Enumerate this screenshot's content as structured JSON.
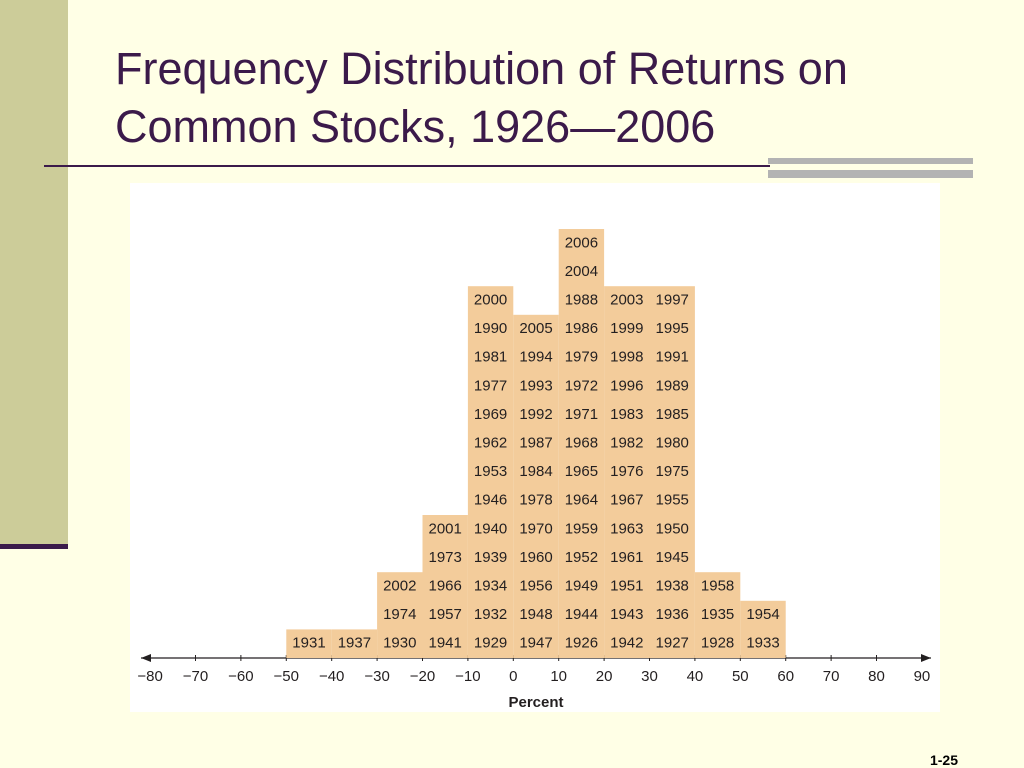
{
  "chart_data": {
    "type": "histogram",
    "title": "Frequency Distribution of Returns on Common Stocks, 1926—2006",
    "x_label": "Percent",
    "xlim": [
      -82,
      92
    ],
    "xticks": [
      {
        "value": -80,
        "label": "−80"
      },
      {
        "value": -70,
        "label": "−70"
      },
      {
        "value": -60,
        "label": "−60"
      },
      {
        "value": -50,
        "label": "−50"
      },
      {
        "value": -40,
        "label": "−40"
      },
      {
        "value": -30,
        "label": "−30"
      },
      {
        "value": -20,
        "label": "−20"
      },
      {
        "value": -10,
        "label": "−10"
      },
      0,
      10,
      20,
      30,
      40,
      50,
      60,
      70,
      80,
      90
    ],
    "bins": [
      -50,
      -40,
      -30,
      -20,
      -10,
      0,
      10,
      20,
      30,
      40,
      50,
      60
    ],
    "color": "#f3cc9b",
    "columns": [
      [
        "1931"
      ],
      [
        "1937"
      ],
      [
        "1930",
        "1974",
        "2002"
      ],
      [
        "1941",
        "1957",
        "1966",
        "1973",
        "2001"
      ],
      [
        "1929",
        "1932",
        "1934",
        "1939",
        "1940",
        "1946",
        "1953",
        "1962",
        "1969",
        "1977",
        "1981",
        "1990",
        "2000"
      ],
      [
        "1947",
        "1948",
        "1956",
        "1960",
        "1970",
        "1978",
        "1984",
        "1987",
        "1992",
        "1993",
        "1994",
        "2005"
      ],
      [
        "1926",
        "1944",
        "1949",
        "1952",
        "1959",
        "1964",
        "1965",
        "1968",
        "1971",
        "1972",
        "1979",
        "1986",
        "1988",
        "2004",
        "2006"
      ],
      [
        "1942",
        "1943",
        "1951",
        "1961",
        "1963",
        "1967",
        "1976",
        "1982",
        "1983",
        "1996",
        "1998",
        "1999",
        "2003"
      ],
      [
        "1927",
        "1936",
        "1938",
        "1945",
        "1950",
        "1955",
        "1975",
        "1980",
        "1985",
        "1989",
        "1991",
        "1995",
        "1997"
      ],
      [
        "1928",
        "1935",
        "1958"
      ],
      [
        "1933",
        "1954"
      ]
    ]
  },
  "slide": {
    "page_number": "1-25"
  }
}
